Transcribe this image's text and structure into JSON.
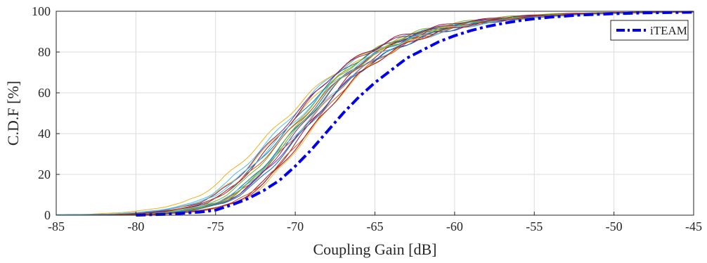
{
  "chart_data": {
    "type": "line",
    "title": "",
    "xlabel": "Coupling Gain [dB]",
    "ylabel": "C.D.F [%]",
    "xlim": [
      -85,
      -45
    ],
    "ylim": [
      0,
      100
    ],
    "xticks": [
      -85,
      -80,
      -75,
      -70,
      -65,
      -60,
      -55,
      -50,
      -45
    ],
    "yticks": [
      0,
      20,
      40,
      60,
      80,
      100
    ],
    "grid": true,
    "legend": {
      "position": "top-right",
      "entries": [
        "iTEAM"
      ]
    },
    "highlight_series": {
      "name": "iTEAM",
      "color": "#0000ee",
      "style": "dash-dot",
      "x": [
        -80,
        -78,
        -76,
        -75,
        -74,
        -73,
        -72,
        -71,
        -70,
        -69,
        -68,
        -67,
        -66,
        -65,
        -64,
        -63,
        -62,
        -61,
        -60,
        -59,
        -58,
        -57,
        -56,
        -55,
        -54,
        -52,
        -50,
        -48,
        -46,
        -45
      ],
      "y": [
        0,
        0.5,
        1.5,
        2.5,
        5,
        8,
        12,
        17,
        24,
        32,
        41,
        50,
        58,
        65,
        71,
        77,
        81,
        85,
        88,
        90.5,
        92.5,
        94,
        95.3,
        96.3,
        97.1,
        98.2,
        98.8,
        99.2,
        99.4,
        99.5
      ]
    },
    "base_series": {
      "x": [
        -85,
        -80,
        -78,
        -77,
        -76,
        -75,
        -74,
        -73,
        -72,
        -71,
        -70,
        -69,
        -68,
        -67,
        -66,
        -65,
        -64,
        -63,
        -62,
        -61,
        -60,
        -59,
        -58,
        -57,
        -56,
        -55,
        -54,
        -52,
        -50,
        -48,
        -45
      ],
      "y": [
        0,
        0.5,
        1.5,
        2.5,
        4,
        6,
        10,
        16,
        24,
        33,
        42,
        51,
        60,
        68,
        74,
        79,
        83,
        86.5,
        89,
        91,
        92.8,
        94.2,
        95.3,
        96.2,
        97,
        97.6,
        98.1,
        98.8,
        99.2,
        99.5,
        99.7
      ]
    },
    "background_series": [
      {
        "color": "#0072bd",
        "shift": 0.0,
        "spread": 1.0
      },
      {
        "color": "#d95319",
        "shift": 0.4,
        "spread": 1.05
      },
      {
        "color": "#edb120",
        "shift": -0.6,
        "spread": 1.1
      },
      {
        "color": "#7e2f8e",
        "shift": 0.2,
        "spread": 0.95
      },
      {
        "color": "#77ac30",
        "shift": -0.3,
        "spread": 1.0
      },
      {
        "color": "#4dbeee",
        "shift": -0.9,
        "spread": 1.08
      },
      {
        "color": "#a2142f",
        "shift": 0.7,
        "spread": 0.9
      },
      {
        "color": "#0072bd",
        "shift": -0.5,
        "spread": 1.02
      },
      {
        "color": "#d95319",
        "shift": 0.9,
        "spread": 0.97
      },
      {
        "color": "#edb120",
        "shift": -1.1,
        "spread": 1.15
      },
      {
        "color": "#7e2f8e",
        "shift": 0.5,
        "spread": 1.03
      },
      {
        "color": "#77ac30",
        "shift": -0.1,
        "spread": 0.92
      },
      {
        "color": "#4dbeee",
        "shift": 0.3,
        "spread": 1.06
      },
      {
        "color": "#a2142f",
        "shift": -0.7,
        "spread": 0.98
      },
      {
        "color": "#0072bd",
        "shift": 0.6,
        "spread": 1.01
      },
      {
        "color": "#d95319",
        "shift": -0.2,
        "spread": 1.09
      },
      {
        "color": "#edb120",
        "shift": 1.1,
        "spread": 0.94
      },
      {
        "color": "#7e2f8e",
        "shift": -0.8,
        "spread": 1.04
      },
      {
        "color": "#77ac30",
        "shift": 0.1,
        "spread": 0.99
      },
      {
        "color": "#4dbeee",
        "shift": -0.4,
        "spread": 1.12
      },
      {
        "color": "#a2142f",
        "shift": 1.0,
        "spread": 0.96
      }
    ]
  }
}
